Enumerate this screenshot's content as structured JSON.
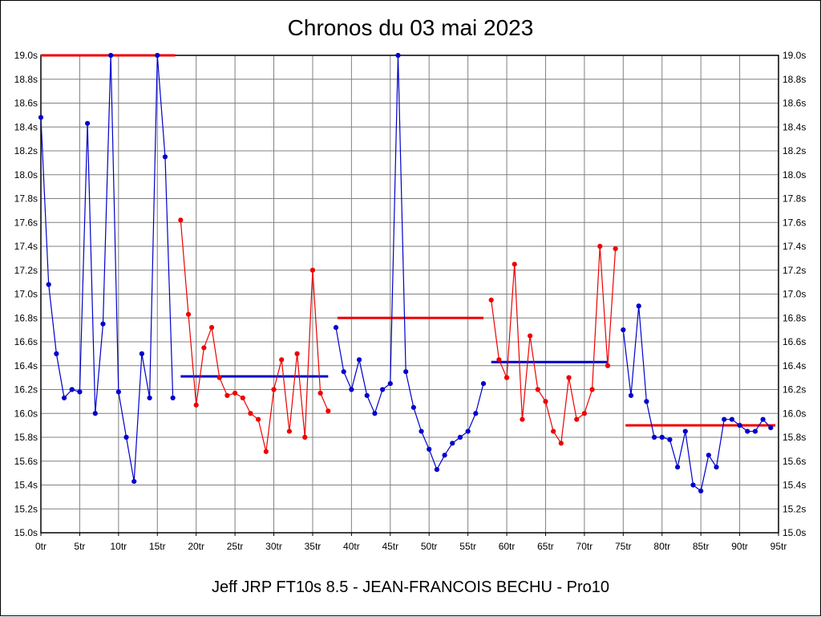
{
  "chart_data": {
    "type": "line",
    "title": "Chronos du 03 mai 2023",
    "caption": "Jeff JRP FT10s 8.5 - JEAN-FRANCOIS BECHU - Pro10",
    "x_unit": "tr",
    "y_unit": "s",
    "xlim": [
      0,
      95
    ],
    "ylim": [
      15.0,
      19.0
    ],
    "x_tick_step": 5,
    "y_tick_step": 0.2,
    "grid": true,
    "legend": "none",
    "colors": {
      "blue": "#0000cc",
      "red": "#ee0000",
      "grid": "#808080",
      "axis": "#000000"
    },
    "series": [
      {
        "name": "stint-1-blue",
        "color_key": "blue",
        "start_x": 0,
        "values": [
          18.48,
          17.08,
          16.5,
          16.13,
          16.2,
          16.18,
          18.43,
          16.0,
          16.75,
          19.0,
          16.18,
          15.8,
          15.43,
          16.5,
          16.13,
          19.0,
          18.15,
          16.13
        ]
      },
      {
        "name": "stint-2-red",
        "color_key": "red",
        "start_x": 18,
        "values": [
          17.62,
          16.83,
          16.07,
          16.55,
          16.72,
          16.3,
          16.15,
          16.17,
          16.13,
          16.0,
          15.95,
          15.68,
          16.2,
          16.45,
          15.85,
          16.5,
          15.8,
          17.2,
          16.17,
          16.02
        ]
      },
      {
        "name": "stint-3-blue",
        "color_key": "blue",
        "start_x": 38,
        "values": [
          16.72,
          16.35,
          16.2,
          16.45,
          16.15,
          16.0,
          16.2,
          16.25,
          19.0,
          16.35,
          16.05,
          15.85,
          15.7,
          15.53,
          15.65,
          15.75,
          15.8,
          15.85,
          16.0,
          16.25
        ]
      },
      {
        "name": "stint-4-red",
        "color_key": "red",
        "start_x": 58,
        "values": [
          16.95,
          16.45,
          16.3,
          17.25,
          15.95,
          16.65,
          16.2,
          16.1,
          15.85,
          15.75,
          16.3,
          15.95,
          16.0,
          16.2,
          17.4,
          16.4,
          17.38
        ]
      },
      {
        "name": "stint-5-blue",
        "color_key": "blue",
        "start_x": 75,
        "values": [
          16.7,
          16.15,
          16.9,
          16.1,
          15.8,
          15.8,
          15.78,
          15.55,
          15.85,
          15.4,
          15.35,
          15.65,
          15.55,
          15.95,
          15.95,
          15.9,
          15.85,
          15.85,
          15.95,
          15.88
        ]
      }
    ],
    "average_lines": [
      {
        "name": "avg-stint-1",
        "color_key": "red",
        "y": 19.0,
        "x1": 0,
        "x2": 17.3
      },
      {
        "name": "avg-stint-2",
        "color_key": "blue",
        "y": 16.31,
        "x1": 18,
        "x2": 37
      },
      {
        "name": "avg-stint-3",
        "color_key": "red",
        "y": 16.8,
        "x1": 38.2,
        "x2": 57
      },
      {
        "name": "avg-stint-4",
        "color_key": "blue",
        "y": 16.43,
        "x1": 58,
        "x2": 73
      },
      {
        "name": "avg-stint-5",
        "color_key": "red",
        "y": 15.9,
        "x1": 75.3,
        "x2": 94.6
      }
    ]
  }
}
